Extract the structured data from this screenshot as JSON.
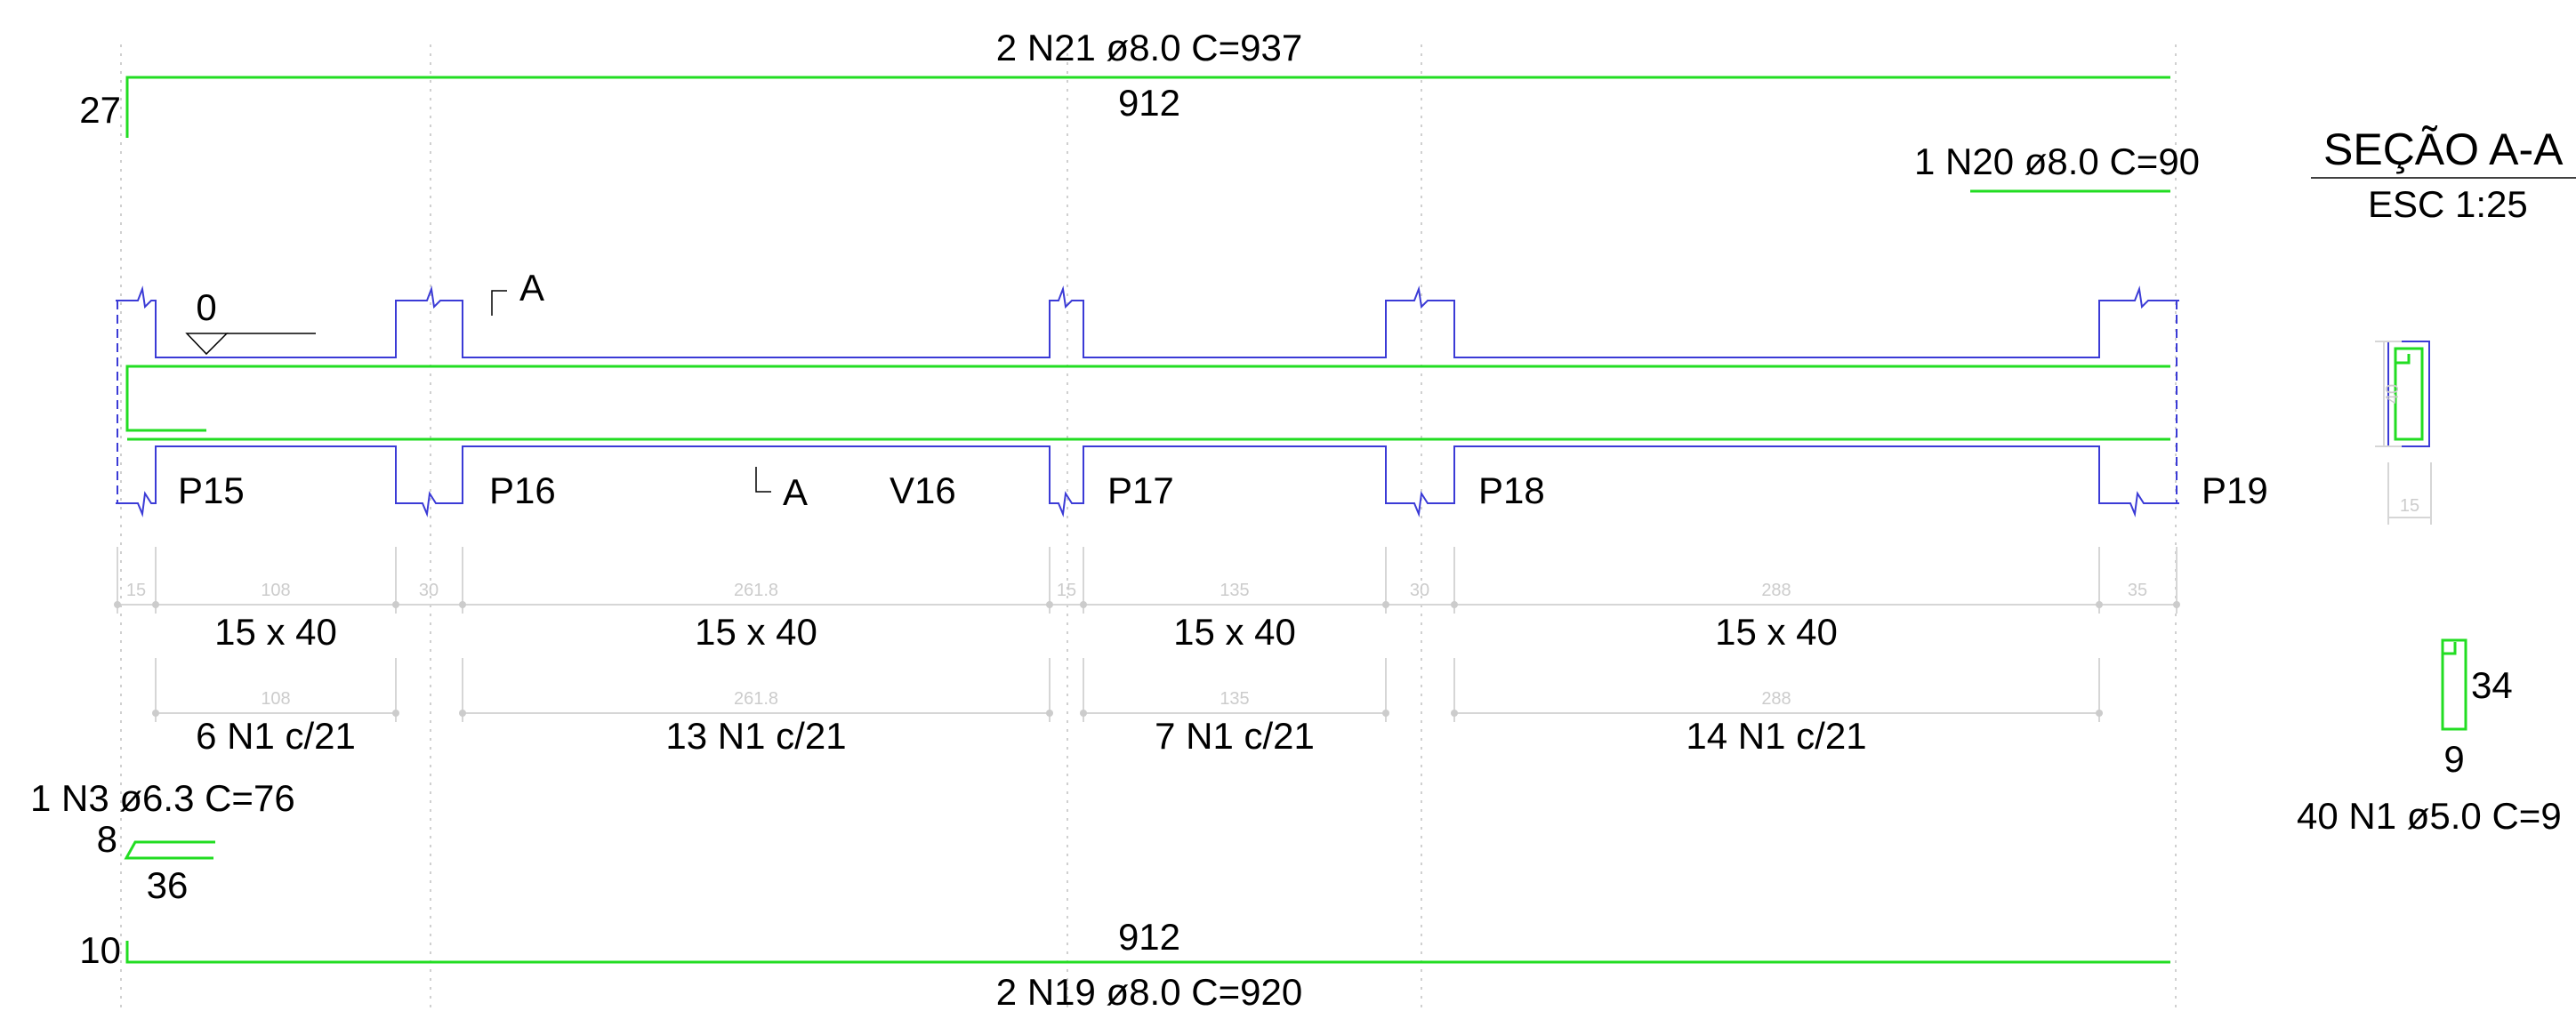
{
  "top_bar": {
    "label": "2 N21 ø8.0  C=937",
    "length": "912",
    "hook": "27"
  },
  "top_extra_bar": {
    "label": "1 N20 ø8.0  C=90"
  },
  "section": {
    "title": "SEÇÃO A-A",
    "scale": "ESC 1:25",
    "height": "40",
    "width": "15"
  },
  "level": {
    "value": "0"
  },
  "cut_marks": {
    "top": "A",
    "bottom": "A"
  },
  "beam": {
    "name": "V16"
  },
  "supports": [
    "P15",
    "P16",
    "P17",
    "P18",
    "P19"
  ],
  "span_dims": [
    "15",
    "108",
    "30",
    "261.8",
    "15",
    "135",
    "30",
    "288",
    "35"
  ],
  "sections": [
    "15 x 40",
    "15 x 40",
    "15 x 40",
    "15 x 40"
  ],
  "stirrup_dims": [
    "108",
    "261.8",
    "135",
    "288"
  ],
  "stirrup_groups": [
    "6 N1 c/21",
    "13 N1 c/21",
    "7 N1 c/21",
    "14 N1 c/21"
  ],
  "n3_bar": {
    "label": "1 N3 ø6.3  C=76",
    "hook": "8",
    "length": "36"
  },
  "bottom_bar": {
    "length": "912",
    "label": "2 N19 ø8.0  C=920",
    "hook": "10"
  },
  "stirrup_detail": {
    "height": "34",
    "width": "9",
    "label": "40 N1 ø5.0  C=9"
  },
  "colors": {
    "rebar": "#22dd22",
    "concrete": "#3b3bd6",
    "dimension": "#cccccc",
    "text": "#000000"
  }
}
